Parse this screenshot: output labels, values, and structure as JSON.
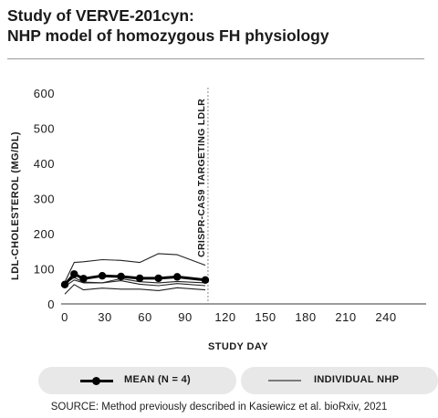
{
  "title_line1": "Study of VERVE-201cyn:",
  "title_line2": "NHP model of homozygous FH physiology",
  "source": "SOURCE: Method previously described in Kasiewicz et al. bioRxiv, 2021",
  "chart_data": {
    "type": "line",
    "xlabel": "STUDY DAY",
    "ylabel": "LDL-CHOLESTEROL (MG/DL)",
    "xlim": [
      0,
      270
    ],
    "ylim": [
      0,
      600
    ],
    "xticks": [
      0,
      30,
      60,
      90,
      120,
      150,
      180,
      210,
      240
    ],
    "yticks": [
      0,
      100,
      200,
      300,
      400,
      500,
      600
    ],
    "grid": false,
    "annotation": {
      "label": "CRISPR-CAS9 TARGETING LDLR",
      "x": 107,
      "style": "dashed"
    },
    "series": [
      {
        "name": "MEAN (N = 4)",
        "style": "mean",
        "x": [
          0,
          7,
          14,
          28,
          42,
          56,
          70,
          84,
          105
        ],
        "y": [
          55,
          85,
          72,
          80,
          78,
          73,
          73,
          77,
          68
        ]
      },
      {
        "name": "INDIVIDUAL NHP",
        "style": "individual",
        "x": [
          0,
          7,
          14,
          28,
          42,
          56,
          70,
          84,
          105
        ],
        "y": [
          62,
          118,
          120,
          126,
          124,
          118,
          143,
          140,
          110
        ]
      },
      {
        "name": "INDIVIDUAL NHP",
        "style": "individual",
        "x": [
          0,
          7,
          14,
          28,
          42,
          56,
          70,
          84,
          105
        ],
        "y": [
          58,
          75,
          62,
          60,
          72,
          63,
          60,
          64,
          60
        ]
      },
      {
        "name": "INDIVIDUAL NHP",
        "style": "individual",
        "x": [
          0,
          7,
          14,
          28,
          42,
          56,
          70,
          84,
          105
        ],
        "y": [
          50,
          68,
          60,
          60,
          66,
          56,
          52,
          58,
          52
        ]
      },
      {
        "name": "INDIVIDUAL NHP",
        "style": "individual",
        "x": [
          0,
          7,
          14,
          28,
          42,
          56,
          70,
          84,
          105
        ],
        "y": [
          28,
          55,
          40,
          45,
          42,
          42,
          38,
          46,
          40
        ]
      }
    ],
    "legend": [
      {
        "label": "MEAN (N = 4)",
        "style": "mean"
      },
      {
        "label": "INDIVIDUAL NHP",
        "style": "individual"
      }
    ],
    "legend_position": "bottom"
  }
}
